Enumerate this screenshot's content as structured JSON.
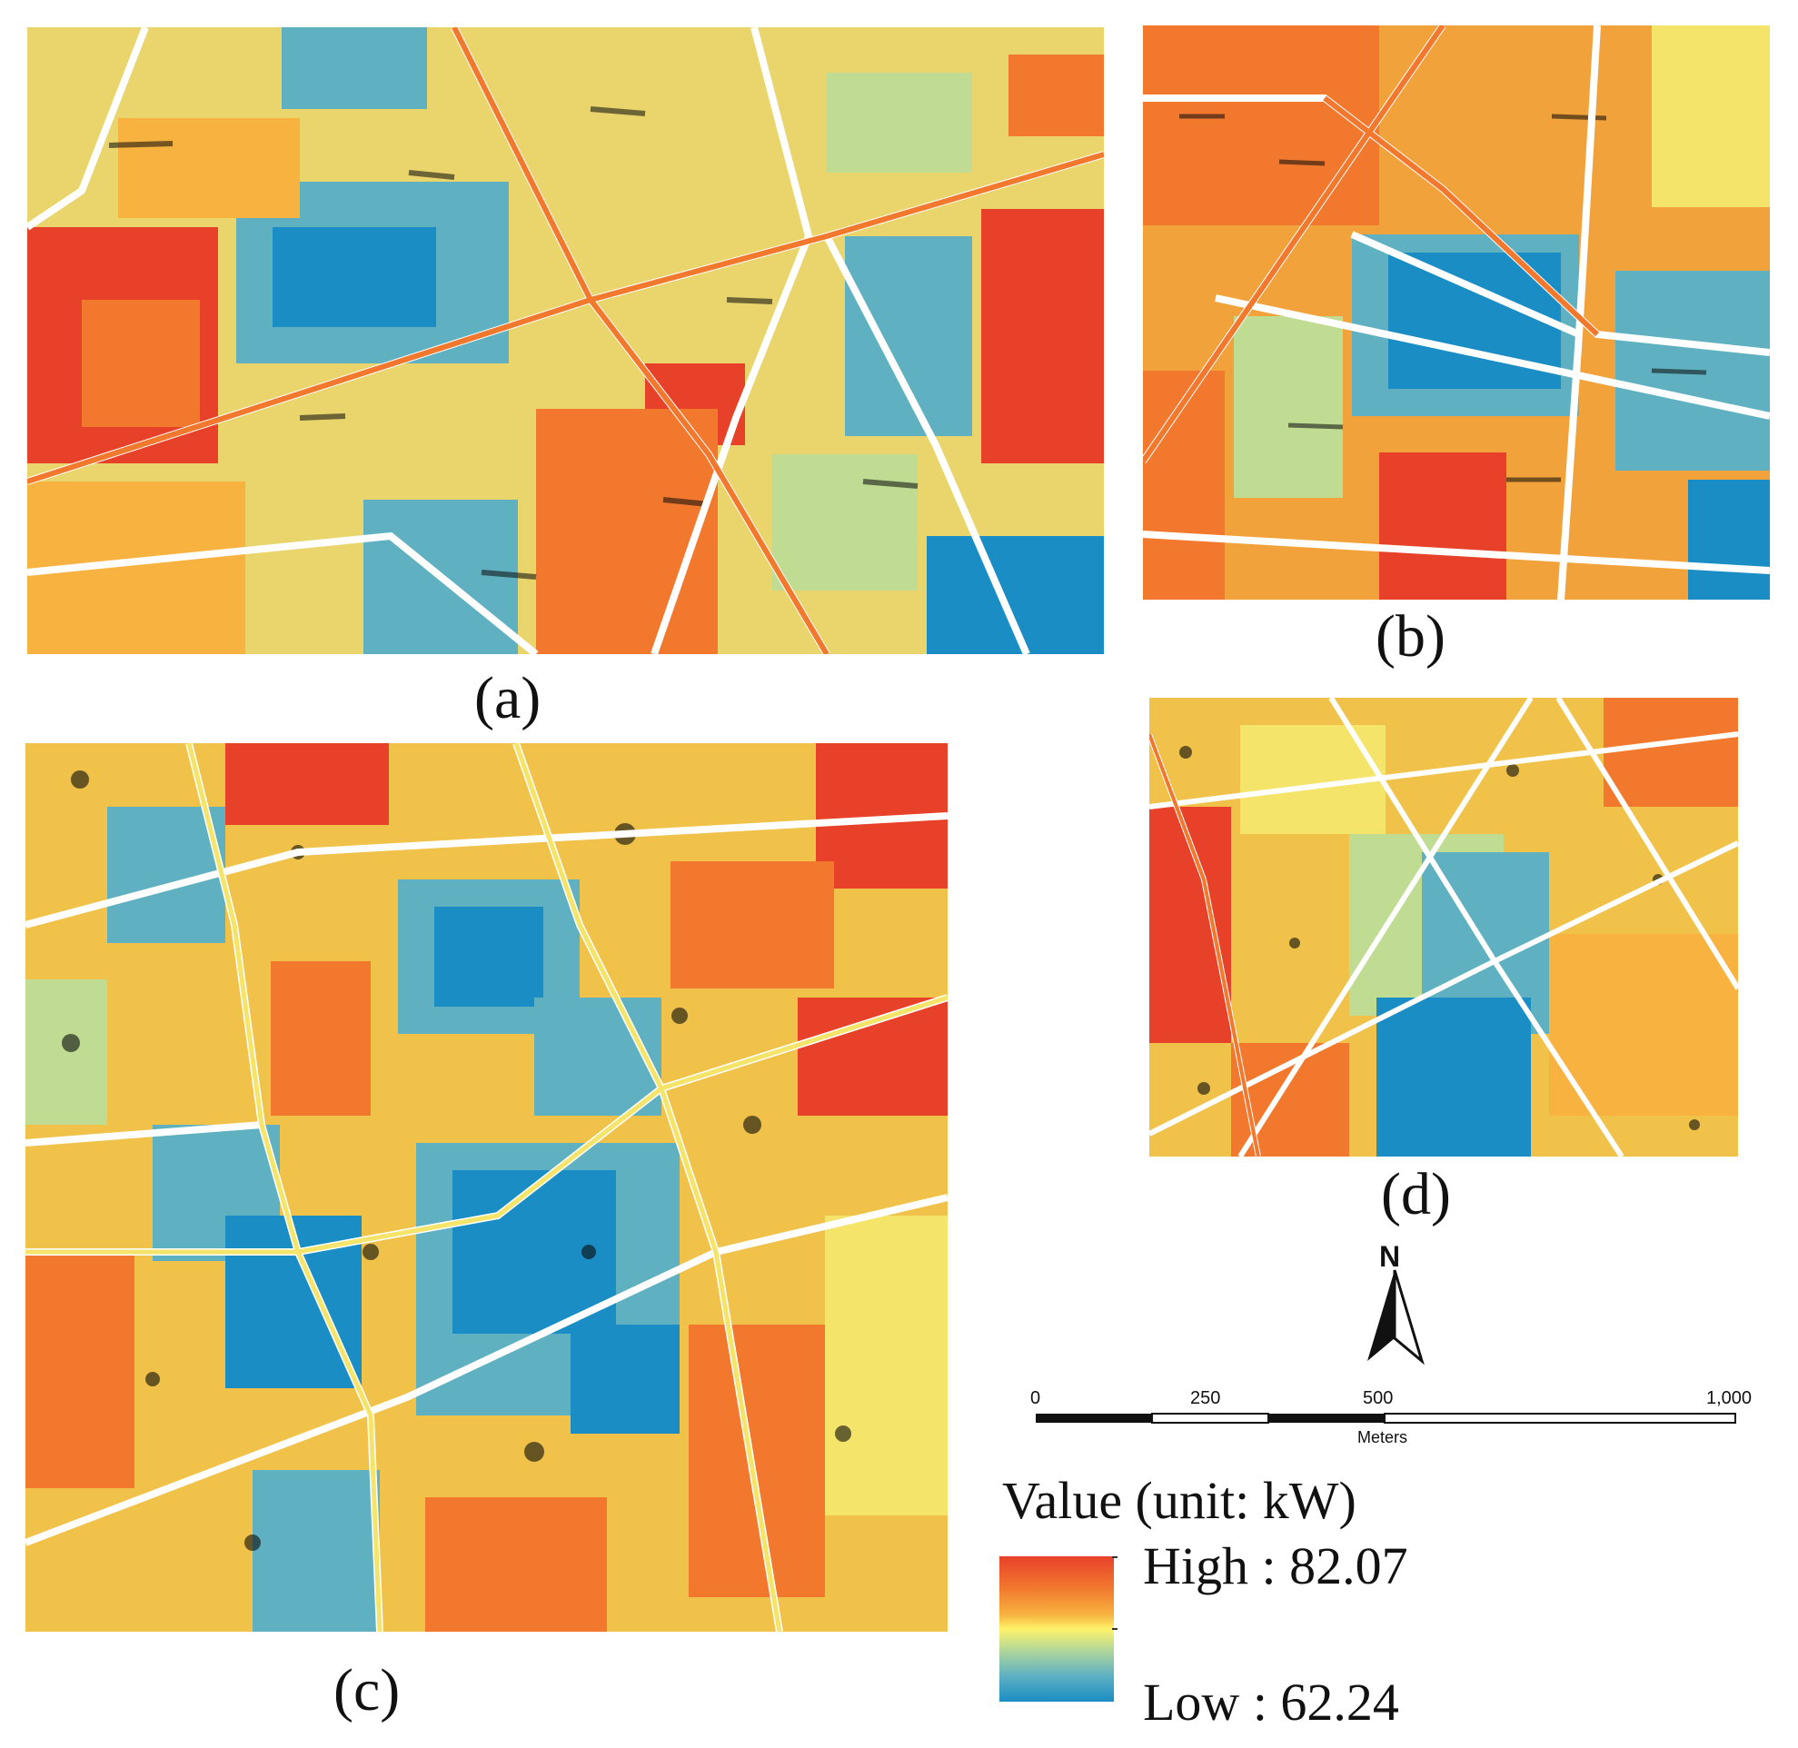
{
  "panels": {
    "a": {
      "caption": "(a)"
    },
    "b": {
      "caption": "(b)"
    },
    "c": {
      "caption": "(c)"
    },
    "d": {
      "caption": "(d)"
    }
  },
  "north_arrow": {
    "label": "N"
  },
  "scale_bar": {
    "ticks": [
      "0",
      "250",
      "500",
      "1,000"
    ],
    "unit": "Meters"
  },
  "legend": {
    "title": "Value (unit: kW)",
    "high": "High : 82.07",
    "low": "Low : 62.24",
    "colors": {
      "high": "#e8412a",
      "mid": "#fff36a",
      "low": "#1a8ec4"
    }
  },
  "palette": {
    "red": "#e8412a",
    "orange": "#f2782e",
    "amber": "#f7b23f",
    "yellow": "#f5e46a",
    "green": "#bfdc92",
    "teal": "#5fb1c2",
    "blue": "#1a8ec4",
    "road": "#ffffff",
    "shadow": "#0a0a0a"
  }
}
